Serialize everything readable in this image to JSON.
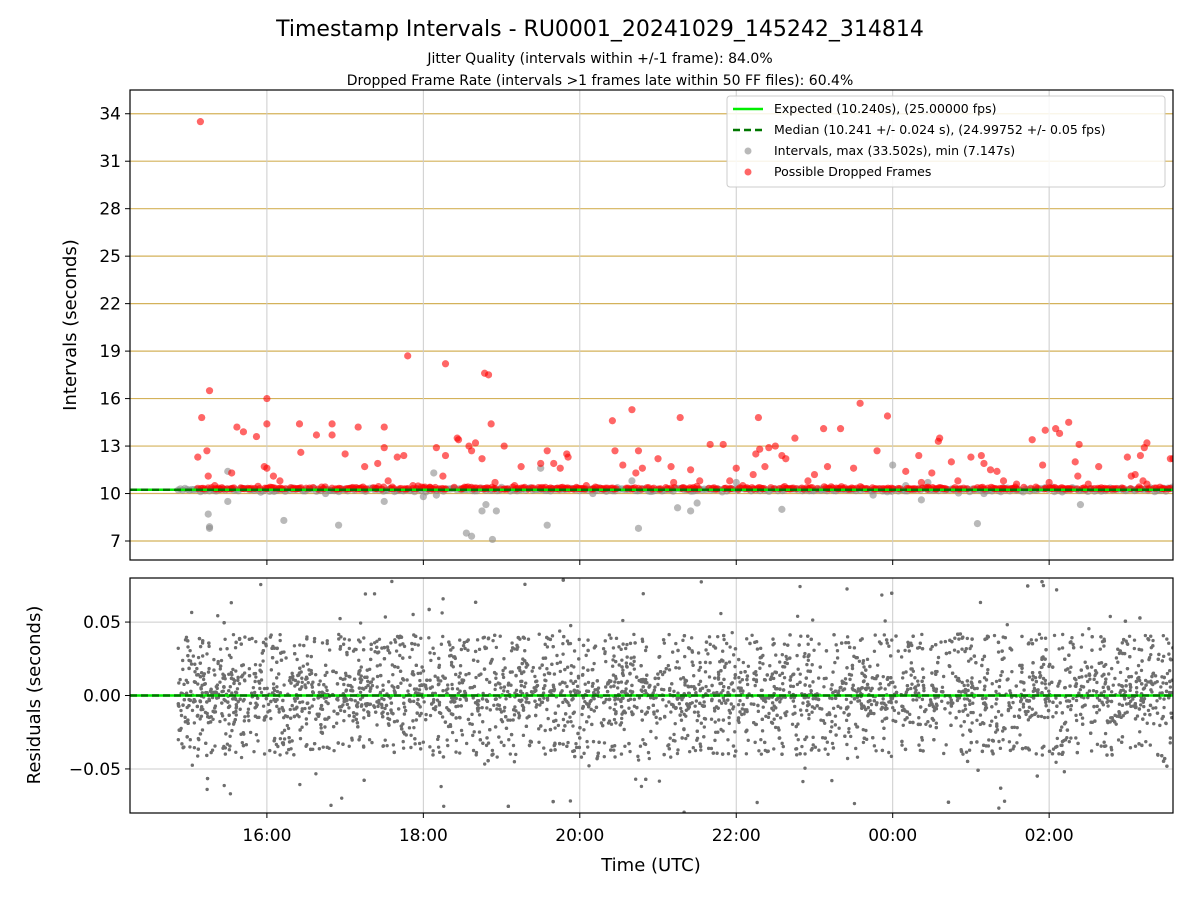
{
  "title": "Timestamp Intervals - RU0001_20241029_145242_314814",
  "subtitle_1": "Jitter Quality (intervals within +/-1 frame): 84.0%",
  "subtitle_2": "Dropped Frame Rate (intervals >1 frames late within 50 FF files): 60.4%",
  "colors": {
    "expected": "#00ee00",
    "median": "#007700",
    "intervals": "#8a8a8a",
    "dropped": "#ff0000",
    "hgrid_top": "#d4b25a",
    "grid": "#cccccc",
    "residuals": "#6e6e6e"
  },
  "chart_data": [
    {
      "type": "scatter",
      "panel": "top",
      "ylabel": "Intervals (seconds)",
      "ylim": [
        5.8,
        35.5
      ],
      "yticks": [
        7,
        10,
        13,
        16,
        19,
        22,
        25,
        28,
        31,
        34
      ],
      "ytick_labels": [
        "7",
        "10",
        "13",
        "16",
        "19",
        "22",
        "25",
        "28",
        "31",
        "34"
      ],
      "xlim": [
        "14:15",
        "27:35"
      ],
      "grid": true,
      "legend_position": "top-right",
      "legend": [
        "Expected (10.240s), (25.00000 fps)",
        "Median (10.241 +/- 0.024 s), (24.99752 +/- 0.05 fps)",
        "Intervals, max (33.502s), min (7.147s)",
        "Possible Dropped Frames"
      ],
      "expected_value": 10.24,
      "median_value": 10.241,
      "interval_max": 33.502,
      "interval_min": 7.147,
      "x_range_data": [
        "14:52",
        "27:35"
      ],
      "dropped_frames": [
        [
          "15:07",
          12.3
        ],
        [
          "15:10",
          14.8
        ],
        [
          "15:14",
          12.7
        ],
        [
          "15:15",
          11.1
        ],
        [
          "15:16",
          16.5
        ],
        [
          "15:09",
          33.5
        ],
        [
          "15:20",
          10.5
        ],
        [
          "15:33",
          11.3
        ],
        [
          "15:37",
          14.2
        ],
        [
          "15:42",
          13.9
        ],
        [
          "15:52",
          13.6
        ],
        [
          "15:58",
          11.7
        ],
        [
          "16:00",
          11.6
        ],
        [
          "16:00",
          14.4
        ],
        [
          "16:00",
          16.0
        ],
        [
          "16:05",
          11.1
        ],
        [
          "16:10",
          10.8
        ],
        [
          "16:25",
          14.4
        ],
        [
          "16:26",
          12.6
        ],
        [
          "16:38",
          13.7
        ],
        [
          "16:50",
          13.7
        ],
        [
          "16:50",
          14.4
        ],
        [
          "17:00",
          12.5
        ],
        [
          "17:10",
          14.2
        ],
        [
          "17:15",
          11.7
        ],
        [
          "17:25",
          11.9
        ],
        [
          "17:30",
          14.2
        ],
        [
          "17:30",
          12.9
        ],
        [
          "17:33",
          10.8
        ],
        [
          "17:40",
          12.3
        ],
        [
          "17:45",
          12.4
        ],
        [
          "17:48",
          18.7
        ],
        [
          "17:52",
          10.5
        ],
        [
          "18:05",
          10.4
        ],
        [
          "18:10",
          12.9
        ],
        [
          "18:15",
          11.1
        ],
        [
          "18:17",
          12.4
        ],
        [
          "18:17",
          18.2
        ],
        [
          "18:26",
          13.5
        ],
        [
          "18:27",
          13.4
        ],
        [
          "18:35",
          13.0
        ],
        [
          "18:37",
          12.7
        ],
        [
          "18:40",
          13.2
        ],
        [
          "18:45",
          12.2
        ],
        [
          "18:47",
          17.6
        ],
        [
          "18:50",
          17.5
        ],
        [
          "18:52",
          14.4
        ],
        [
          "18:55",
          10.7
        ],
        [
          "19:02",
          13.0
        ],
        [
          "19:10",
          10.5
        ],
        [
          "19:15",
          11.7
        ],
        [
          "19:30",
          11.9
        ],
        [
          "19:35",
          12.7
        ],
        [
          "19:40",
          11.9
        ],
        [
          "19:45",
          11.6
        ],
        [
          "19:50",
          12.5
        ],
        [
          "19:51",
          12.3
        ],
        [
          "20:05",
          10.5
        ],
        [
          "20:25",
          14.6
        ],
        [
          "20:27",
          12.7
        ],
        [
          "20:33",
          11.8
        ],
        [
          "20:40",
          15.3
        ],
        [
          "20:43",
          11.3
        ],
        [
          "20:45",
          12.7
        ],
        [
          "20:48",
          11.6
        ],
        [
          "21:00",
          12.2
        ],
        [
          "21:10",
          11.7
        ],
        [
          "21:12",
          10.7
        ],
        [
          "21:17",
          14.8
        ],
        [
          "21:25",
          11.5
        ],
        [
          "21:32",
          10.8
        ],
        [
          "21:40",
          13.1
        ],
        [
          "21:50",
          13.1
        ],
        [
          "21:55",
          10.8
        ],
        [
          "22:00",
          11.6
        ],
        [
          "22:05",
          10.5
        ],
        [
          "22:13",
          11.2
        ],
        [
          "22:15",
          12.5
        ],
        [
          "22:17",
          14.8
        ],
        [
          "22:18",
          12.8
        ],
        [
          "22:22",
          11.7
        ],
        [
          "22:25",
          12.9
        ],
        [
          "22:30",
          13.0
        ],
        [
          "22:35",
          12.4
        ],
        [
          "22:38",
          12.2
        ],
        [
          "22:45",
          13.5
        ],
        [
          "22:55",
          10.8
        ],
        [
          "23:00",
          11.2
        ],
        [
          "23:07",
          14.1
        ],
        [
          "23:10",
          11.7
        ],
        [
          "23:20",
          14.1
        ],
        [
          "23:30",
          11.6
        ],
        [
          "23:35",
          15.7
        ],
        [
          "23:48",
          12.7
        ],
        [
          "23:56",
          14.9
        ],
        [
          "24:10",
          11.4
        ],
        [
          "24:20",
          12.4
        ],
        [
          "24:22",
          10.7
        ],
        [
          "24:27",
          10.4
        ],
        [
          "24:30",
          11.3
        ],
        [
          "24:35",
          13.3
        ],
        [
          "24:36",
          13.5
        ],
        [
          "24:45",
          12.0
        ],
        [
          "24:50",
          10.8
        ],
        [
          "25:00",
          12.3
        ],
        [
          "25:08",
          12.4
        ],
        [
          "25:10",
          11.9
        ],
        [
          "25:15",
          11.5
        ],
        [
          "25:20",
          11.4
        ],
        [
          "25:25",
          10.8
        ],
        [
          "25:35",
          10.6
        ],
        [
          "25:47",
          13.4
        ],
        [
          "25:55",
          11.8
        ],
        [
          "25:57",
          14.0
        ],
        [
          "26:00",
          10.7
        ],
        [
          "26:05",
          14.1
        ],
        [
          "26:08",
          13.8
        ],
        [
          "26:15",
          14.5
        ],
        [
          "26:20",
          12.0
        ],
        [
          "26:22",
          11.1
        ],
        [
          "26:23",
          13.1
        ],
        [
          "26:30",
          10.6
        ],
        [
          "26:38",
          11.7
        ],
        [
          "27:00",
          12.3
        ],
        [
          "27:03",
          11.1
        ],
        [
          "27:06",
          11.2
        ],
        [
          "27:10",
          12.4
        ],
        [
          "27:12",
          10.8
        ],
        [
          "27:13",
          12.9
        ],
        [
          "27:15",
          13.2
        ],
        [
          "27:15",
          10.6
        ],
        [
          "27:25",
          10.4
        ],
        [
          "27:33",
          12.2
        ],
        [
          "27:35",
          12.2
        ]
      ],
      "low_intervals": [
        [
          "15:15",
          8.7
        ],
        [
          "15:16",
          7.9
        ],
        [
          "15:16",
          7.8
        ],
        [
          "15:30",
          9.5
        ],
        [
          "15:30",
          11.4
        ],
        [
          "16:13",
          8.3
        ],
        [
          "16:45",
          10.0
        ],
        [
          "16:49",
          10.2
        ],
        [
          "16:55",
          8.0
        ],
        [
          "17:30",
          9.5
        ],
        [
          "18:00",
          9.8
        ],
        [
          "18:02",
          10.1
        ],
        [
          "18:08",
          11.3
        ],
        [
          "18:10",
          9.9
        ],
        [
          "18:33",
          7.5
        ],
        [
          "18:37",
          7.3
        ],
        [
          "18:45",
          8.9
        ],
        [
          "18:48",
          9.3
        ],
        [
          "18:53",
          7.1
        ],
        [
          "18:56",
          8.9
        ],
        [
          "19:30",
          11.6
        ],
        [
          "19:35",
          8.0
        ],
        [
          "20:10",
          10.0
        ],
        [
          "20:40",
          10.8
        ],
        [
          "20:45",
          7.8
        ],
        [
          "21:15",
          9.1
        ],
        [
          "21:25",
          8.9
        ],
        [
          "21:30",
          9.4
        ],
        [
          "22:00",
          10.7
        ],
        [
          "22:35",
          9.0
        ],
        [
          "23:05",
          10.2
        ],
        [
          "23:45",
          9.9
        ],
        [
          "24:00",
          11.8
        ],
        [
          "24:10",
          10.5
        ],
        [
          "24:22",
          9.6
        ],
        [
          "24:27",
          10.7
        ],
        [
          "25:05",
          8.1
        ],
        [
          "25:10",
          10.0
        ],
        [
          "25:35",
          10.3
        ],
        [
          "26:10",
          10.1
        ],
        [
          "26:24",
          9.3
        ],
        [
          "26:55",
          10.3
        ]
      ]
    },
    {
      "type": "scatter",
      "panel": "bottom",
      "xlabel": "Time (UTC)",
      "ylabel": "Residuals (seconds)",
      "ylim": [
        -0.08,
        0.08
      ],
      "yticks": [
        -0.05,
        0.0,
        0.05
      ],
      "ytick_labels": [
        "−0.05",
        "0.00",
        "0.05"
      ],
      "xlim": [
        "14:15",
        "27:35"
      ],
      "xticks": [
        "16:00",
        "18:00",
        "20:00",
        "22:00",
        "24:00",
        "26:00"
      ],
      "xtick_labels": [
        "16:00",
        "18:00",
        "20:00",
        "22:00",
        "00:00",
        "02:00"
      ],
      "grid": true,
      "zero_line": 0.0,
      "residual_spread_typical": 0.04,
      "point_count_approx": 4000
    }
  ]
}
